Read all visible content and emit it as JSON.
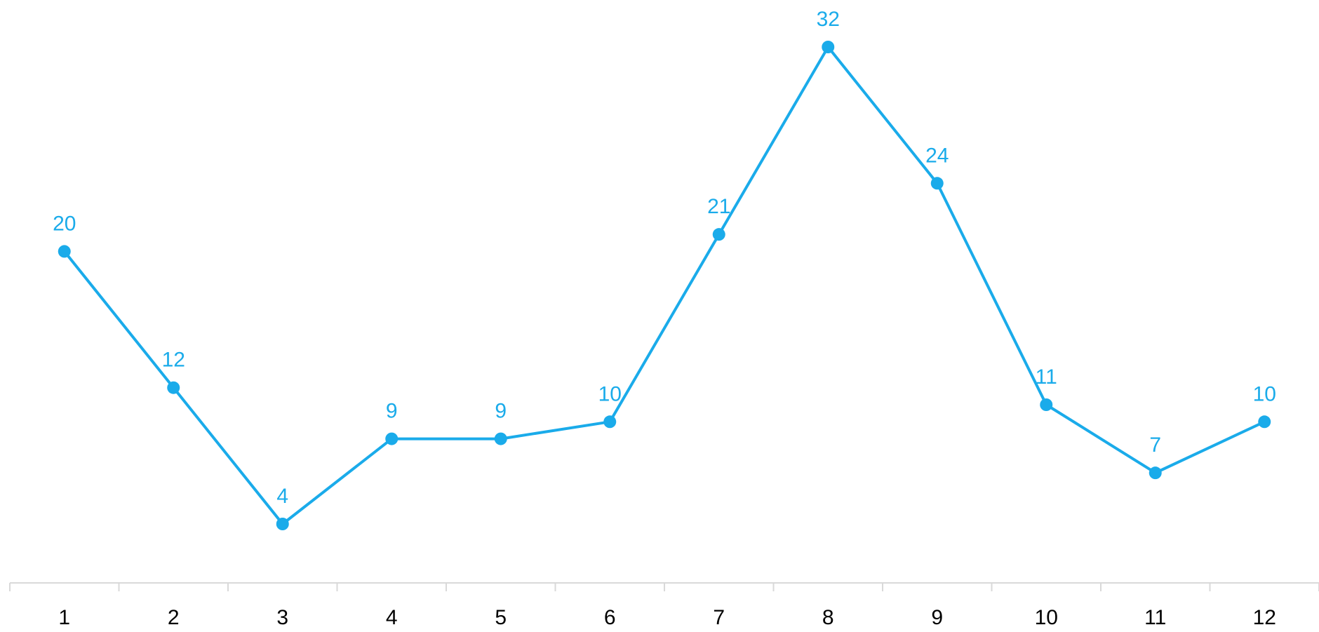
{
  "chart_data": {
    "type": "line",
    "title": "",
    "xlabel": "",
    "ylabel": "",
    "categories": [
      "1",
      "2",
      "3",
      "4",
      "5",
      "6",
      "7",
      "8",
      "9",
      "10",
      "11",
      "12"
    ],
    "series": [
      {
        "values": [
          20,
          12,
          4,
          9,
          9,
          10,
          21,
          32,
          24,
          11,
          7,
          10
        ],
        "color": "#1aabea"
      }
    ],
    "data_labels": true,
    "grid": false,
    "legend": "none",
    "y_axis_visible": false,
    "axis_color": "#d9d9d9"
  }
}
